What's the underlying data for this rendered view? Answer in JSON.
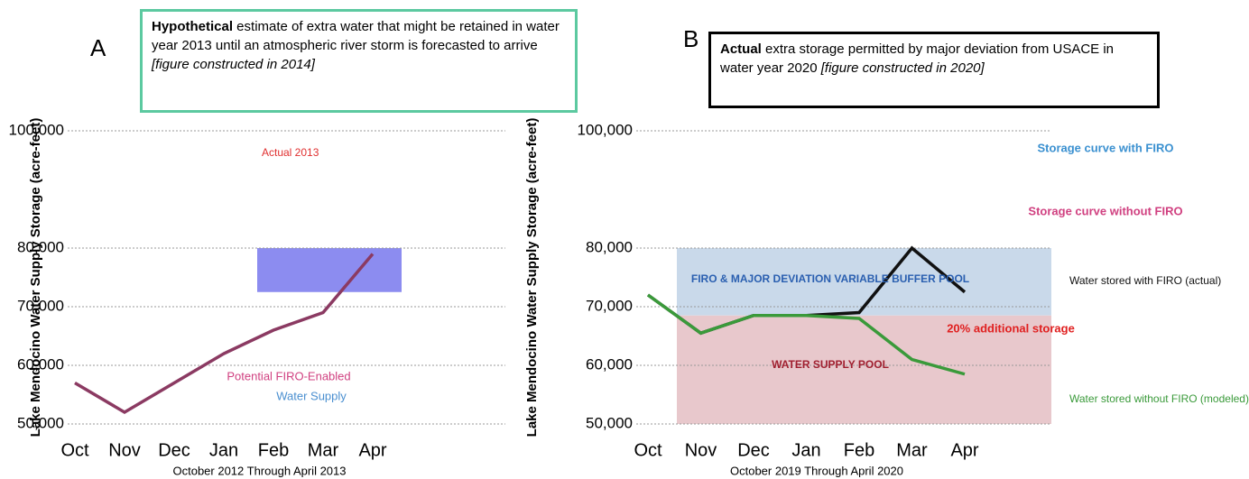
{
  "chart_data": [
    {
      "type": "line",
      "panel_label": "A",
      "callout": {
        "bold": "Hypothetical",
        "text": " estimate of extra water that might be retained in water year 2013 until an atmospheric river storm is forecasted to arrive ",
        "italic": "[figure constructed in 2014]"
      },
      "categories": [
        "Oct",
        "Nov",
        "Dec",
        "Jan",
        "Feb",
        "Mar",
        "Apr"
      ],
      "xlabel": "October 2012 Through April 2013",
      "ylabel": "Lake Mendocino Water Supply Storage (acre-feet)",
      "ylim": [
        50000,
        100000
      ],
      "yticks": [
        {
          "value": 50000,
          "label": "50,000"
        },
        {
          "value": 60000,
          "label": "60,000"
        },
        {
          "value": 70000,
          "label": "70,000"
        },
        {
          "value": 80000,
          "label": "80,000"
        },
        {
          "value": 100000,
          "label": "100,000"
        }
      ],
      "series": [
        {
          "name": "Actual 2013",
          "color": "#8b3a62",
          "values": [
            57000,
            52000,
            57000,
            62000,
            66000,
            69000,
            79000
          ]
        }
      ],
      "annotations": [
        "Potential FIRO-Enabled",
        "Water Supply"
      ]
    },
    {
      "type": "line",
      "panel_label": "B",
      "callout": {
        "bold": "Actual",
        "text": " extra storage permitted by major deviation from USACE in water year 2020 ",
        "italic": "[figure constructed in 2020]"
      },
      "categories": [
        "Oct",
        "Nov",
        "Dec",
        "Jan",
        "Feb",
        "Mar",
        "Apr"
      ],
      "xlabel": "October 2019 Through April 2020",
      "ylabel": "Lake Mendocino Water Supply Storage (acre-feet)",
      "ylim": [
        50000,
        100000
      ],
      "yticks": [
        {
          "value": 50000,
          "label": "50,000"
        },
        {
          "value": 60000,
          "label": "60,000"
        },
        {
          "value": 70000,
          "label": "70,000"
        },
        {
          "value": 80000,
          "label": "80,000"
        },
        {
          "value": 100000,
          "label": "100,000"
        }
      ],
      "series": [
        {
          "name": "Water stored with FIRO (actual)",
          "color": "#111111",
          "values": [
            72000,
            65500,
            68500,
            68500,
            69000,
            80000,
            72500
          ]
        },
        {
          "name": "Water stored without FIRO (modeled)",
          "color": "#3a9a3a",
          "values": [
            72000,
            65500,
            68500,
            68500,
            68000,
            61000,
            58500
          ]
        }
      ],
      "annotations": [
        "FIRO & MAJOR DEVIATION VARIABLE BUFFER POOL",
        "WATER SUPPLY POOL",
        "20% additional storage",
        "Storage curve with FIRO",
        "Storage curve without FIRO"
      ]
    }
  ]
}
